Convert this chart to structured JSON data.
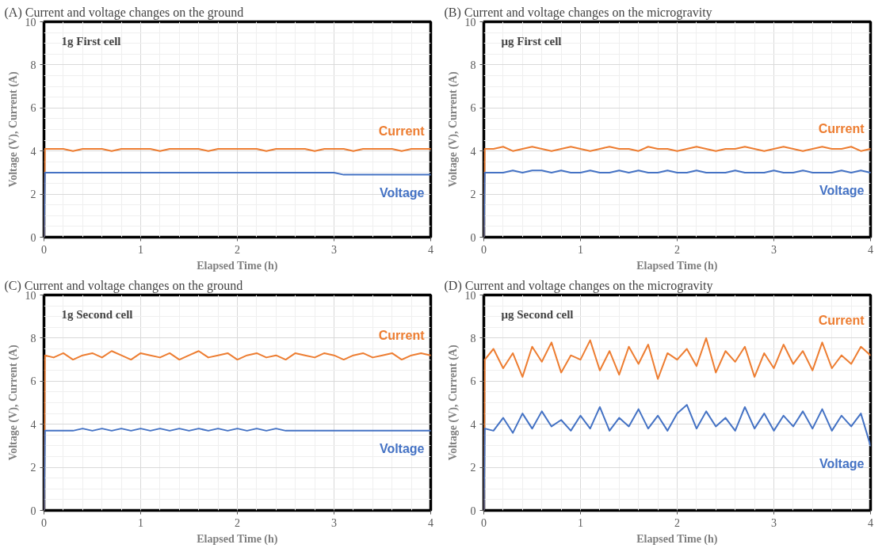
{
  "chart_data": [
    {
      "type": "line",
      "title": "(A) Current and voltage changes on the ground",
      "xlabel": "Elapsed Time (h)",
      "ylabel": "Voltage (V), Current (A)",
      "annotations": [
        "1g First cell"
      ],
      "x": [
        0,
        0.01,
        0.1,
        0.2,
        0.3,
        0.4,
        0.5,
        0.6,
        0.7,
        0.8,
        0.9,
        1.0,
        1.1,
        1.2,
        1.3,
        1.4,
        1.5,
        1.6,
        1.7,
        1.8,
        1.9,
        2.0,
        2.1,
        2.2,
        2.3,
        2.4,
        2.5,
        2.6,
        2.7,
        2.8,
        2.9,
        3.0,
        3.1,
        3.2,
        3.3,
        3.4,
        3.5,
        3.6,
        3.7,
        3.8,
        3.9,
        4.0
      ],
      "xlim": [
        0,
        4
      ],
      "ylim": [
        0,
        10
      ],
      "xticks": [
        0,
        1,
        2,
        3,
        4
      ],
      "yticks": [
        0,
        2,
        4,
        6,
        8,
        10
      ],
      "grid": true,
      "series": [
        {
          "name": "Current",
          "color": "#ed7d31",
          "values": [
            0,
            4.1,
            4.1,
            4.1,
            4.0,
            4.1,
            4.1,
            4.1,
            4.0,
            4.1,
            4.1,
            4.1,
            4.1,
            4.0,
            4.1,
            4.1,
            4.1,
            4.1,
            4.0,
            4.1,
            4.1,
            4.1,
            4.1,
            4.1,
            4.0,
            4.1,
            4.1,
            4.1,
            4.1,
            4.0,
            4.1,
            4.1,
            4.1,
            4.0,
            4.1,
            4.1,
            4.1,
            4.1,
            4.0,
            4.1,
            4.1,
            4.1
          ]
        },
        {
          "name": "Voltage",
          "color": "#4472c4",
          "values": [
            0,
            3.0,
            3.0,
            3.0,
            3.0,
            3.0,
            3.0,
            3.0,
            3.0,
            3.0,
            3.0,
            3.0,
            3.0,
            3.0,
            3.0,
            3.0,
            3.0,
            3.0,
            3.0,
            3.0,
            3.0,
            3.0,
            3.0,
            3.0,
            3.0,
            3.0,
            3.0,
            3.0,
            3.0,
            3.0,
            3.0,
            3.0,
            2.9,
            2.9,
            2.9,
            2.9,
            2.9,
            2.9,
            2.9,
            2.9,
            2.9,
            2.9
          ]
        }
      ]
    },
    {
      "type": "line",
      "title": "(B) Current and voltage changes on the microgravity",
      "xlabel": "Elapsed Time (h)",
      "ylabel": "Voltage (V), Current (A)",
      "annotations": [
        "μg First cell"
      ],
      "x": [
        0,
        0.01,
        0.1,
        0.2,
        0.3,
        0.4,
        0.5,
        0.6,
        0.7,
        0.8,
        0.9,
        1.0,
        1.1,
        1.2,
        1.3,
        1.4,
        1.5,
        1.6,
        1.7,
        1.8,
        1.9,
        2.0,
        2.1,
        2.2,
        2.3,
        2.4,
        2.5,
        2.6,
        2.7,
        2.8,
        2.9,
        3.0,
        3.1,
        3.2,
        3.3,
        3.4,
        3.5,
        3.6,
        3.7,
        3.8,
        3.9,
        4.0
      ],
      "xlim": [
        0,
        4
      ],
      "ylim": [
        0,
        10
      ],
      "xticks": [
        0,
        1,
        2,
        3,
        4
      ],
      "yticks": [
        0,
        2,
        4,
        6,
        8,
        10
      ],
      "grid": true,
      "series": [
        {
          "name": "Current",
          "color": "#ed7d31",
          "values": [
            0,
            4.1,
            4.1,
            4.2,
            4.0,
            4.1,
            4.2,
            4.1,
            4.0,
            4.1,
            4.2,
            4.1,
            4.0,
            4.1,
            4.2,
            4.1,
            4.1,
            4.0,
            4.2,
            4.1,
            4.1,
            4.0,
            4.1,
            4.2,
            4.1,
            4.0,
            4.1,
            4.1,
            4.2,
            4.1,
            4.0,
            4.1,
            4.2,
            4.1,
            4.0,
            4.1,
            4.2,
            4.1,
            4.1,
            4.2,
            4.0,
            4.1
          ]
        },
        {
          "name": "Voltage",
          "color": "#4472c4",
          "values": [
            0,
            3.0,
            3.0,
            3.0,
            3.1,
            3.0,
            3.1,
            3.1,
            3.0,
            3.1,
            3.0,
            3.0,
            3.1,
            3.0,
            3.0,
            3.1,
            3.0,
            3.1,
            3.0,
            3.0,
            3.1,
            3.0,
            3.0,
            3.1,
            3.0,
            3.0,
            3.0,
            3.1,
            3.0,
            3.0,
            3.0,
            3.1,
            3.0,
            3.0,
            3.1,
            3.0,
            3.0,
            3.0,
            3.1,
            3.0,
            3.1,
            3.0
          ]
        }
      ]
    },
    {
      "type": "line",
      "title": "(C) Current and voltage changes on the ground",
      "xlabel": "Elapsed Time (h)",
      "ylabel": "Voltage (V), Current (A)",
      "annotations": [
        "1g Second cell"
      ],
      "x": [
        0,
        0.01,
        0.1,
        0.2,
        0.3,
        0.4,
        0.5,
        0.6,
        0.7,
        0.8,
        0.9,
        1.0,
        1.1,
        1.2,
        1.3,
        1.4,
        1.5,
        1.6,
        1.7,
        1.8,
        1.9,
        2.0,
        2.1,
        2.2,
        2.3,
        2.4,
        2.5,
        2.6,
        2.7,
        2.8,
        2.9,
        3.0,
        3.1,
        3.2,
        3.3,
        3.4,
        3.5,
        3.6,
        3.7,
        3.8,
        3.9,
        4.0
      ],
      "xlim": [
        0,
        4
      ],
      "ylim": [
        0,
        10
      ],
      "xticks": [
        0,
        1,
        2,
        3,
        4
      ],
      "yticks": [
        0,
        2,
        4,
        6,
        8,
        10
      ],
      "grid": true,
      "series": [
        {
          "name": "Current",
          "color": "#ed7d31",
          "values": [
            0,
            7.2,
            7.1,
            7.3,
            7.0,
            7.2,
            7.3,
            7.1,
            7.4,
            7.2,
            7.0,
            7.3,
            7.2,
            7.1,
            7.3,
            7.0,
            7.2,
            7.4,
            7.1,
            7.2,
            7.3,
            7.0,
            7.2,
            7.3,
            7.1,
            7.2,
            7.0,
            7.3,
            7.2,
            7.1,
            7.3,
            7.2,
            7.0,
            7.2,
            7.3,
            7.1,
            7.2,
            7.3,
            7.0,
            7.2,
            7.3,
            7.2
          ]
        },
        {
          "name": "Voltage",
          "color": "#4472c4",
          "values": [
            0,
            3.7,
            3.7,
            3.7,
            3.7,
            3.8,
            3.7,
            3.8,
            3.7,
            3.8,
            3.7,
            3.8,
            3.7,
            3.8,
            3.7,
            3.8,
            3.7,
            3.8,
            3.7,
            3.8,
            3.7,
            3.8,
            3.7,
            3.8,
            3.7,
            3.8,
            3.7,
            3.7,
            3.7,
            3.7,
            3.7,
            3.7,
            3.7,
            3.7,
            3.7,
            3.7,
            3.7,
            3.7,
            3.7,
            3.7,
            3.7,
            3.7
          ]
        }
      ]
    },
    {
      "type": "line",
      "title": "(D) Current and voltage changes on the microgravity",
      "xlabel": "Elapsed Time (h)",
      "ylabel": "Voltage (V), Current (A)",
      "annotations": [
        "μg Second cell"
      ],
      "x": [
        0,
        0.01,
        0.1,
        0.2,
        0.3,
        0.4,
        0.5,
        0.6,
        0.7,
        0.8,
        0.9,
        1.0,
        1.1,
        1.2,
        1.3,
        1.4,
        1.5,
        1.6,
        1.7,
        1.8,
        1.9,
        2.0,
        2.1,
        2.2,
        2.3,
        2.4,
        2.5,
        2.6,
        2.7,
        2.8,
        2.9,
        3.0,
        3.1,
        3.2,
        3.3,
        3.4,
        3.5,
        3.6,
        3.7,
        3.8,
        3.9,
        4.0
      ],
      "xlim": [
        0,
        4
      ],
      "ylim": [
        0,
        10
      ],
      "xticks": [
        0,
        1,
        2,
        3,
        4
      ],
      "yticks": [
        0,
        2,
        4,
        6,
        8,
        10
      ],
      "grid": true,
      "series": [
        {
          "name": "Current",
          "color": "#ed7d31",
          "values": [
            0,
            7.0,
            7.5,
            6.6,
            7.3,
            6.2,
            7.6,
            6.9,
            7.8,
            6.4,
            7.2,
            7.0,
            7.9,
            6.5,
            7.4,
            6.3,
            7.6,
            6.8,
            7.7,
            6.1,
            7.3,
            7.0,
            7.5,
            6.7,
            8.0,
            6.4,
            7.4,
            6.9,
            7.6,
            6.2,
            7.3,
            6.6,
            7.7,
            6.8,
            7.4,
            6.5,
            7.8,
            6.6,
            7.2,
            6.8,
            7.6,
            7.2
          ]
        },
        {
          "name": "Voltage",
          "color": "#4472c4",
          "values": [
            0,
            3.8,
            3.7,
            4.3,
            3.6,
            4.5,
            3.8,
            4.6,
            3.9,
            4.2,
            3.7,
            4.4,
            3.8,
            4.8,
            3.7,
            4.3,
            3.9,
            4.7,
            3.8,
            4.4,
            3.7,
            4.5,
            4.9,
            3.8,
            4.6,
            3.9,
            4.3,
            3.7,
            4.8,
            3.8,
            4.5,
            3.7,
            4.4,
            3.9,
            4.6,
            3.8,
            4.7,
            3.7,
            4.4,
            3.9,
            4.5,
            3.0
          ]
        }
      ]
    }
  ]
}
